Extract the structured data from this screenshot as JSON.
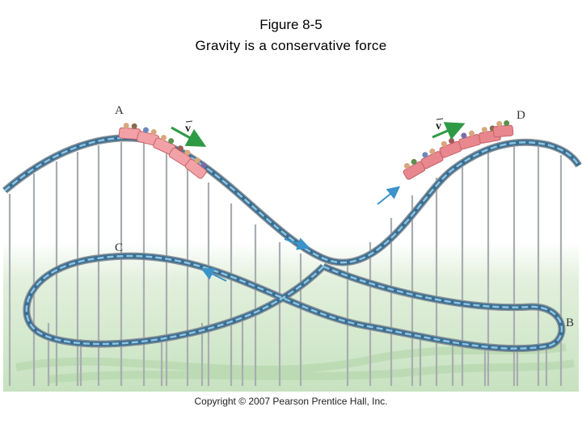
{
  "title_line1": "Figure 8-5",
  "title_line2": "Gravity is a conservative force",
  "points": {
    "a": "A",
    "b": "B",
    "c": "C",
    "d": "D"
  },
  "velocity_label": "v",
  "copyright": "Copyright © 2007 Pearson Prentice Hall, Inc.",
  "colors": {
    "track_outer": "#3a6f93",
    "track_inner": "#8fc3df",
    "rail_gray": "#8a8f94",
    "support": "#a9adb1",
    "ground_light": "#d8ebd3",
    "ground_mid": "#c6e2c0",
    "car_body": "#f2a2a6",
    "car_edge": "#c4636a",
    "car_back_body": "#e8878e",
    "velocity_arrow": "#2f9a46",
    "direction_arrow": "#3a93c9"
  }
}
